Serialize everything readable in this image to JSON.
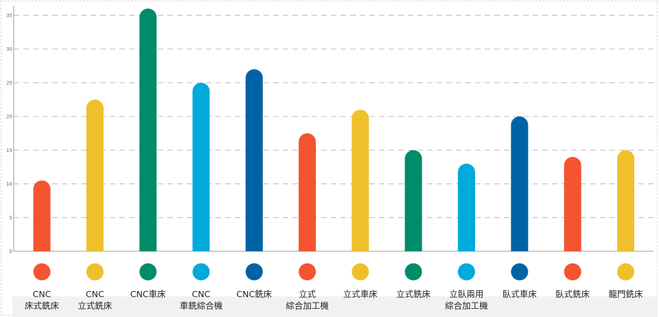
{
  "chart_data": {
    "type": "bar",
    "title": "",
    "xlabel": "",
    "ylabel": "",
    "ylim": [
      0,
      36
    ],
    "yticks": [
      0,
      5,
      10,
      15,
      20,
      25,
      30,
      35
    ],
    "grid": true,
    "categories": [
      [
        "CNC",
        "床式銑床"
      ],
      [
        "CNC",
        "立式銑床"
      ],
      [
        "CNC車床"
      ],
      [
        "CNC",
        "車銑綜合機"
      ],
      [
        "CNC銑床"
      ],
      [
        "立式",
        "綜合加工機"
      ],
      [
        "立式車床"
      ],
      [
        "立式銑床"
      ],
      [
        "立臥兩用",
        "綜合加工機"
      ],
      [
        "臥式車床"
      ],
      [
        "臥式銑床"
      ],
      [
        "龍門銑床"
      ]
    ],
    "values": [
      10.5,
      22.5,
      36,
      25,
      27,
      17.5,
      21,
      15,
      13,
      20,
      14,
      15
    ],
    "colors": [
      "#f4542f",
      "#f0c02c",
      "#008c69",
      "#00aadb",
      "#0063a6",
      "#f4542f",
      "#f0c02c",
      "#008c69",
      "#00aadb",
      "#0063a6",
      "#f4542f",
      "#f0c02c"
    ]
  }
}
